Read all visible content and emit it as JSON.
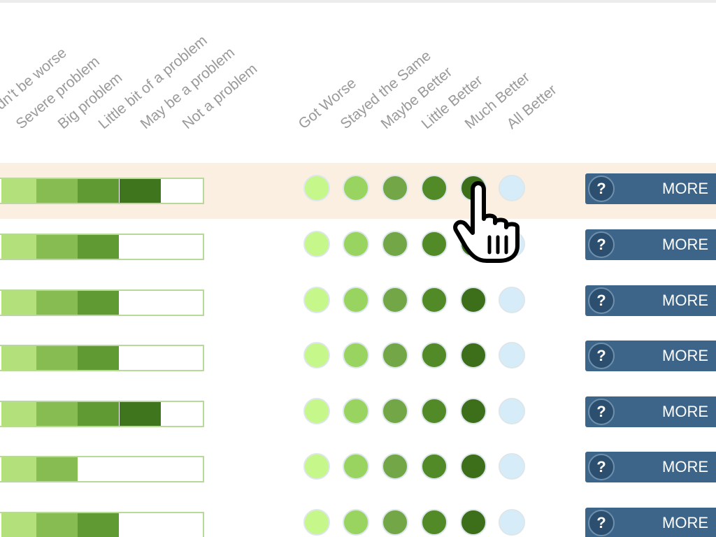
{
  "severity_headers": [
    "Couldn't be worse",
    "Severe problem",
    "Big problem",
    "Little bit of a problem",
    "May be a problem",
    "Not a problem"
  ],
  "change_headers": [
    "Got Worse",
    "Stayed the Same",
    "Maybe Better",
    "Little Better",
    "Much Better",
    "All Better"
  ],
  "severity_colors": [
    "#b3e07a",
    "#86bc52",
    "#5f9a33",
    "#3e751d"
  ],
  "change_colors": [
    "#c6f78a",
    "#98d45f",
    "#72a646",
    "#528a27",
    "#3d6e1a",
    "#d6ecf8"
  ],
  "more_button": {
    "label": "MORE",
    "help_symbol": "?"
  },
  "rows": [
    {
      "severity_filled": 4,
      "highlighted": true
    },
    {
      "severity_filled": 3,
      "highlighted": false
    },
    {
      "severity_filled": 3,
      "highlighted": false
    },
    {
      "severity_filled": 3,
      "highlighted": false
    },
    {
      "severity_filled": 4,
      "highlighted": false
    },
    {
      "severity_filled": 2,
      "highlighted": false
    },
    {
      "severity_filled": 3,
      "highlighted": false
    }
  ],
  "cursor_icon": "hand-pointer-icon"
}
